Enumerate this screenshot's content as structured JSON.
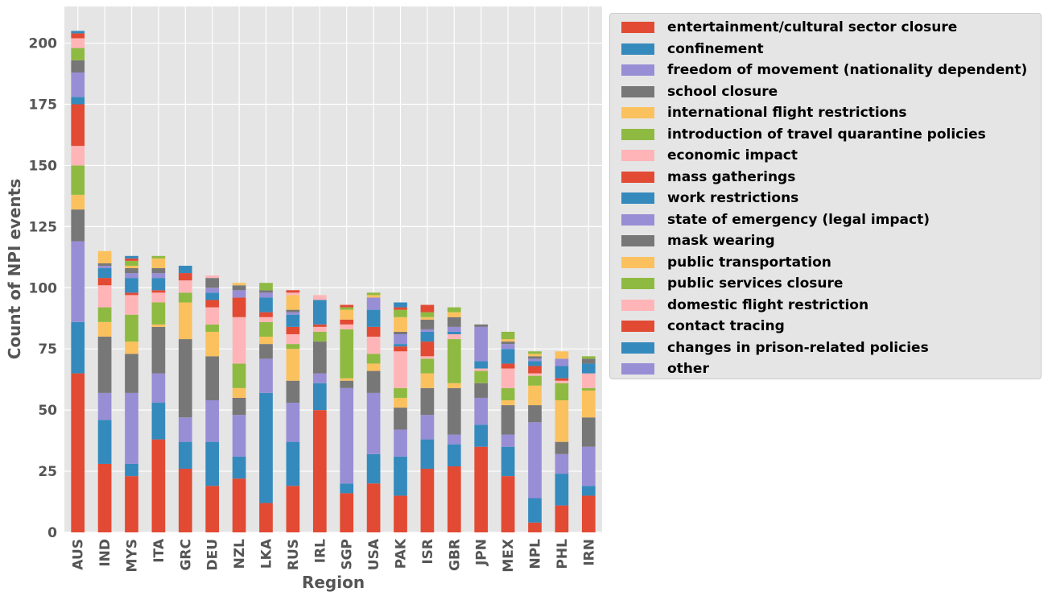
{
  "colors": {
    "red": "#E24A33",
    "blue": "#348ABD",
    "purple": "#988ED5",
    "gray": "#777777",
    "yellow": "#FBC15E",
    "green": "#8EBA42",
    "pink": "#FFB5B8",
    "plot_bg": "#E5E5E5",
    "grid": "#FFFFFF",
    "text": "#555555"
  },
  "chart_data": {
    "type": "bar",
    "stacked": true,
    "xlabel": "Region",
    "ylabel": "Count of NPI events",
    "ylim": [
      0,
      215
    ],
    "yticks": [
      0,
      25,
      50,
      75,
      100,
      125,
      150,
      175,
      200
    ],
    "grid": true,
    "legend_position": "outside-right-top",
    "categories": [
      "AUS",
      "IND",
      "MYS",
      "ITA",
      "GRC",
      "DEU",
      "NZL",
      "LKA",
      "RUS",
      "IRL",
      "SGP",
      "USA",
      "PAK",
      "ISR",
      "GBR",
      "JPN",
      "MEX",
      "NPL",
      "PHL",
      "IRN"
    ],
    "series": [
      {
        "name": "entertainment/cultural sector closure",
        "color": "red",
        "values": [
          65,
          28,
          23,
          38,
          26,
          19,
          22,
          12,
          19,
          50,
          16,
          20,
          15,
          26,
          27,
          35,
          23,
          4,
          11,
          15
        ]
      },
      {
        "name": "confinement",
        "color": "blue",
        "values": [
          21,
          18,
          5,
          15,
          11,
          18,
          9,
          45,
          18,
          11,
          4,
          12,
          16,
          12,
          9,
          9,
          12,
          10,
          13,
          4
        ]
      },
      {
        "name": "freedom of movement (nationality dependent)",
        "color": "purple",
        "values": [
          33,
          11,
          29,
          12,
          10,
          17,
          17,
          14,
          16,
          4,
          39,
          25,
          11,
          10,
          4,
          11,
          5,
          31,
          8,
          16
        ]
      },
      {
        "name": "school closure",
        "color": "gray",
        "values": [
          13,
          23,
          16,
          19,
          32,
          18,
          7,
          6,
          9,
          13,
          3,
          9,
          9,
          11,
          19,
          6,
          12,
          7,
          5,
          12
        ]
      },
      {
        "name": "international flight restrictions",
        "color": "yellow",
        "values": [
          6,
          6,
          5,
          1,
          15,
          10,
          4,
          3,
          13,
          0,
          1,
          3,
          4,
          6,
          2,
          0,
          2,
          8,
          17,
          11
        ]
      },
      {
        "name": "introduction of travel quarantine policies",
        "color": "green",
        "values": [
          12,
          6,
          11,
          9,
          4,
          3,
          10,
          6,
          2,
          4,
          20,
          4,
          4,
          6,
          18,
          5,
          5,
          4,
          7,
          1
        ]
      },
      {
        "name": "economic impact",
        "color": "pink",
        "values": [
          8,
          9,
          8,
          4,
          5,
          7,
          19,
          2,
          4,
          2,
          2,
          7,
          15,
          1,
          2,
          1,
          8,
          1,
          1,
          6
        ]
      },
      {
        "name": "mass gatherings",
        "color": "red",
        "values": [
          17,
          3,
          1,
          1,
          3,
          3,
          8,
          2,
          3,
          1,
          2,
          4,
          2,
          6,
          0,
          0,
          2,
          3,
          1,
          0
        ]
      },
      {
        "name": "work restrictions",
        "color": "blue",
        "values": [
          3,
          4,
          6,
          5,
          3,
          3,
          0,
          6,
          5,
          10,
          0,
          7,
          1,
          4,
          1,
          3,
          6,
          2,
          5,
          4
        ]
      },
      {
        "name": "state of emergency (legal impact)",
        "color": "purple",
        "values": [
          10,
          1,
          2,
          2,
          0,
          2,
          3,
          2,
          1,
          0,
          0,
          5,
          4,
          1,
          2,
          14,
          2,
          1,
          3,
          0
        ]
      },
      {
        "name": "mask wearing",
        "color": "gray",
        "values": [
          5,
          1,
          2,
          2,
          0,
          4,
          2,
          1,
          1,
          0,
          0,
          0,
          1,
          4,
          4,
          1,
          1,
          1,
          0,
          2
        ]
      },
      {
        "name": "public transportation",
        "color": "yellow",
        "values": [
          0,
          5,
          1,
          4,
          0,
          0,
          1,
          0,
          6,
          0,
          4,
          1,
          6,
          1,
          2,
          0,
          1,
          1,
          3,
          0
        ]
      },
      {
        "name": "public services closure",
        "color": "green",
        "values": [
          5,
          0,
          2,
          1,
          0,
          0,
          0,
          3,
          0,
          0,
          1,
          1,
          3,
          2,
          2,
          0,
          3,
          1,
          0,
          1
        ]
      },
      {
        "name": "domestic flight restriction",
        "color": "pink",
        "values": [
          4,
          0,
          0,
          0,
          0,
          1,
          0,
          0,
          1,
          2,
          0,
          0,
          0,
          0,
          0,
          0,
          0,
          0,
          0,
          0
        ]
      },
      {
        "name": "contact tracing",
        "color": "red",
        "values": [
          2,
          0,
          1,
          0,
          0,
          0,
          0,
          0,
          1,
          0,
          1,
          0,
          1,
          3,
          0,
          0,
          0,
          0,
          0,
          0
        ]
      },
      {
        "name": "changes in prison-related policies",
        "color": "blue",
        "values": [
          1,
          0,
          1,
          0,
          0,
          0,
          0,
          0,
          0,
          0,
          0,
          0,
          2,
          0,
          0,
          0,
          0,
          0,
          0,
          0
        ]
      },
      {
        "name": "other",
        "color": "purple",
        "values": [
          0,
          0,
          0,
          0,
          0,
          0,
          0,
          0,
          0,
          0,
          0,
          0,
          0,
          0,
          0,
          0,
          0,
          0,
          0,
          0
        ]
      }
    ]
  }
}
